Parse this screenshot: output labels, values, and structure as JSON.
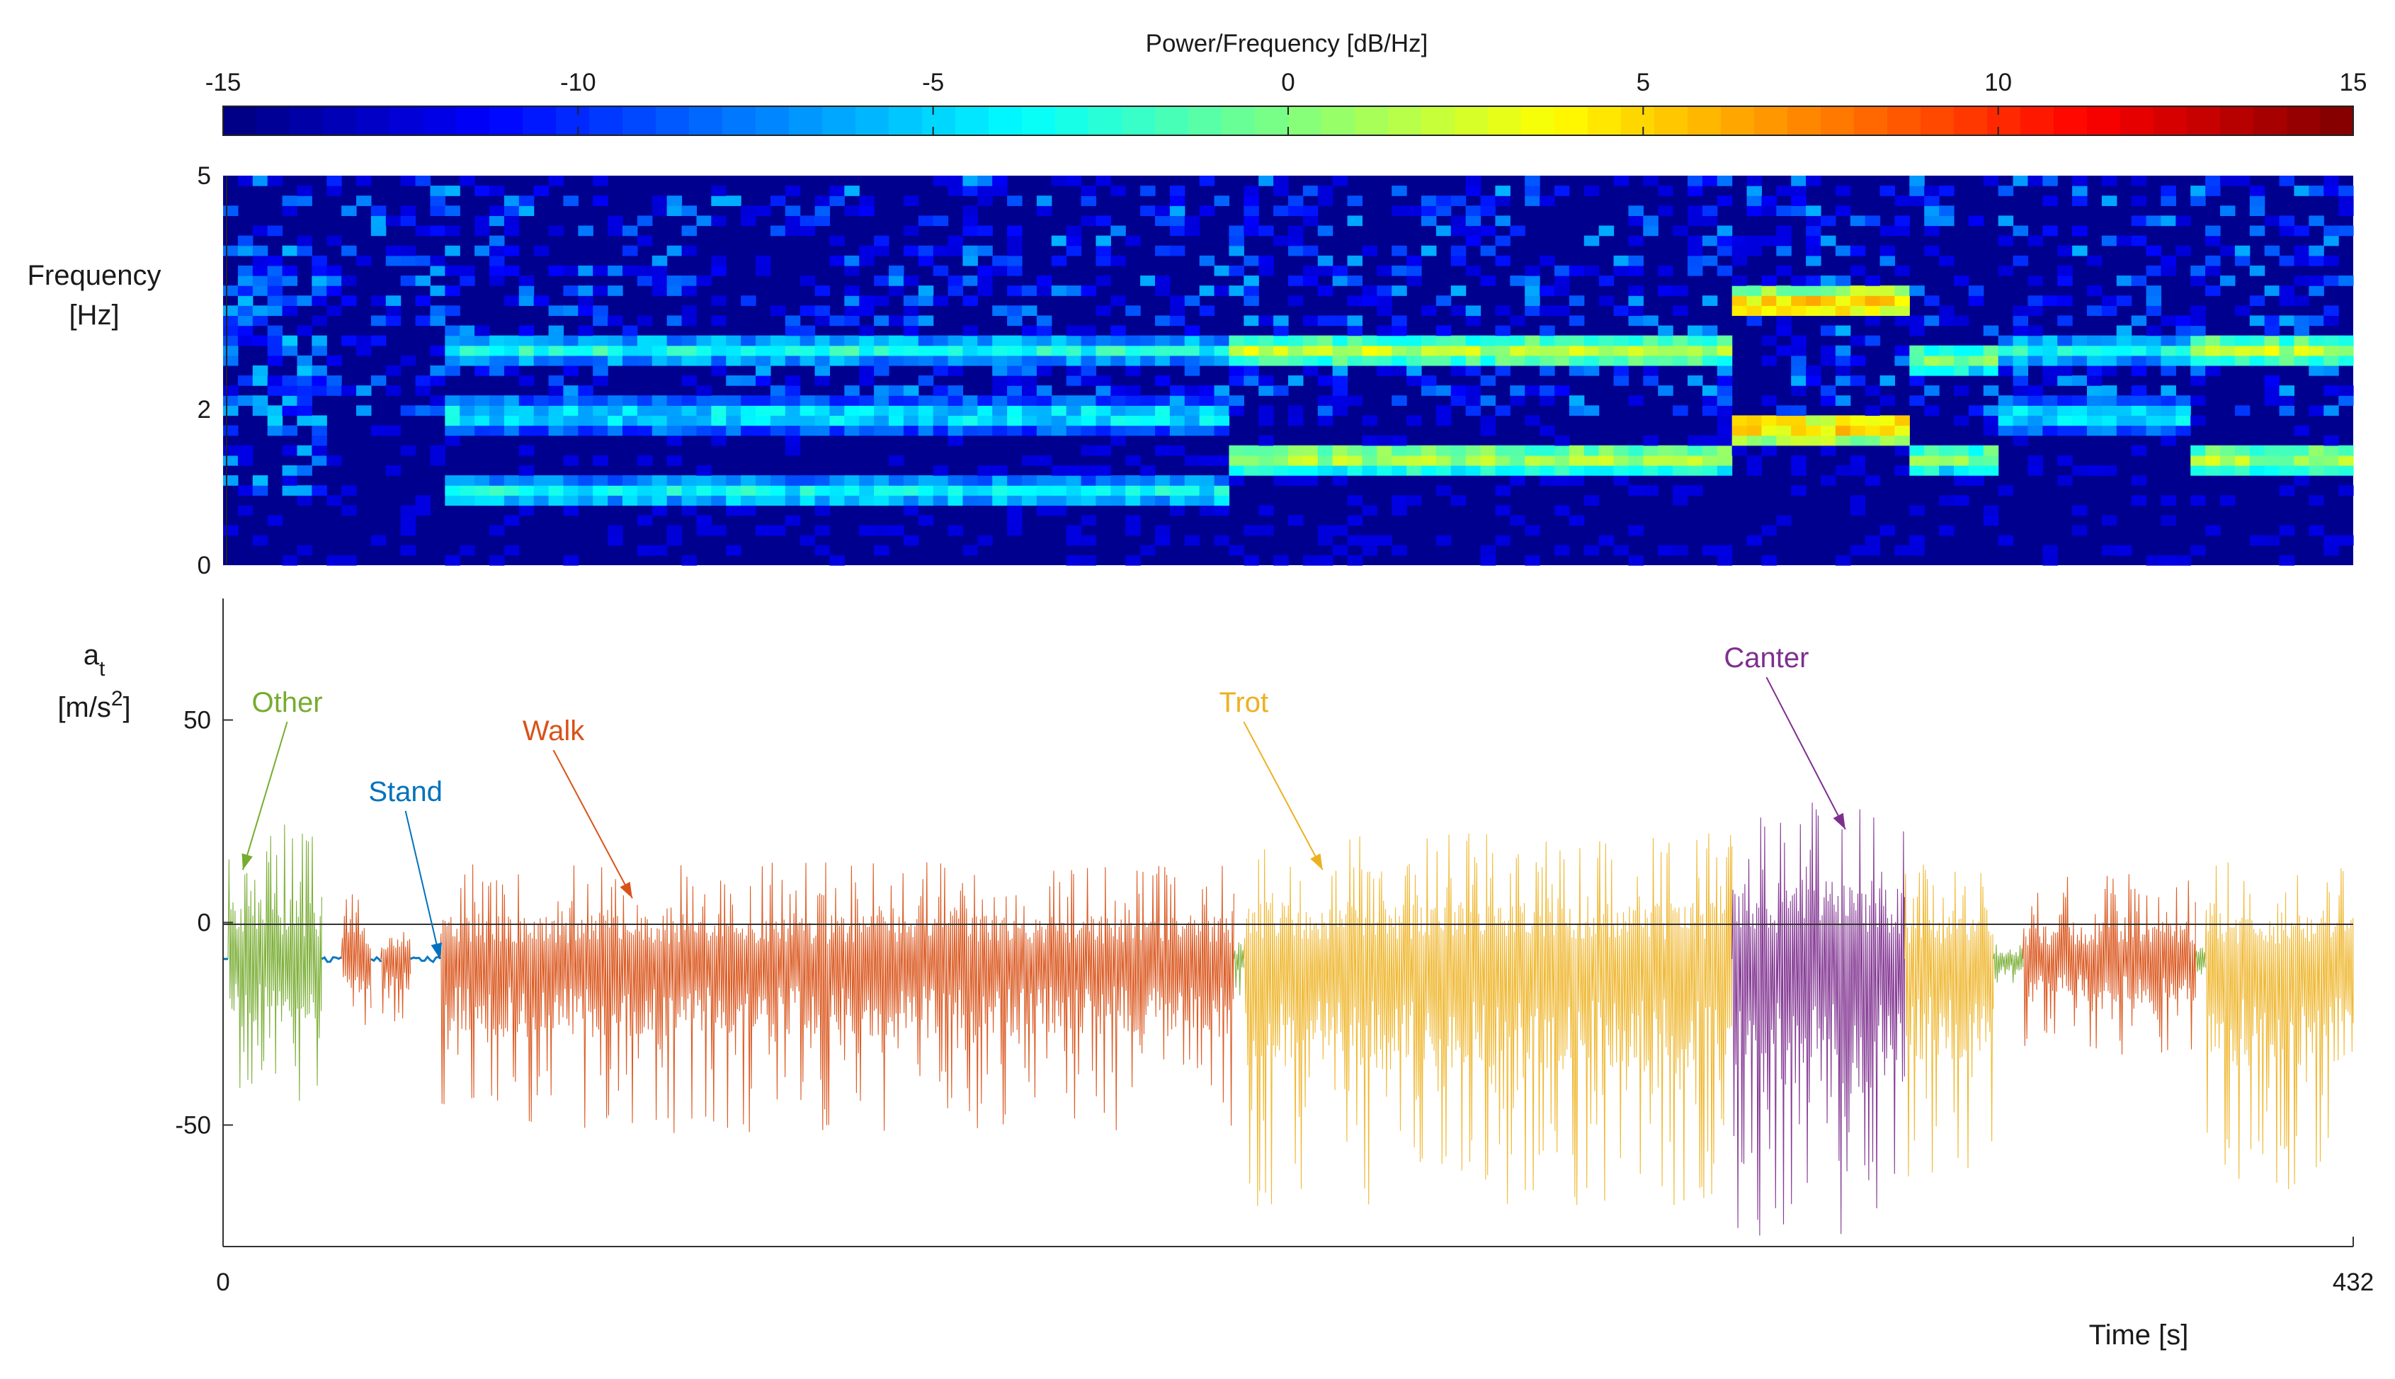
{
  "colorbar": {
    "title": "Power/Frequency [dB/Hz]",
    "range": [
      -15,
      15
    ],
    "ticks": [
      "-15",
      "-10",
      "-5",
      "0",
      "5",
      "10",
      "15"
    ],
    "tick_values": [
      -15,
      -10,
      -5,
      0,
      5,
      10,
      15
    ],
    "colormap": "jet"
  },
  "chart_data": [
    {
      "type": "heatmap",
      "ylabel_line1": "Frequency",
      "ylabel_line2": "[Hz]",
      "xlim": [
        0,
        432
      ],
      "ylim": [
        0,
        5
      ],
      "yticks": [
        "0",
        "2",
        "5"
      ],
      "ytick_values": [
        0,
        2,
        5
      ],
      "frequency_bands": [
        {
          "time_range": [
            0,
            20
          ],
          "pattern": "sparse",
          "peak_db": -5
        },
        {
          "time_range": [
            45,
            205
          ],
          "freqs_hz": [
            0.95,
            1.95,
            2.8
          ],
          "peak_db": -3
        },
        {
          "time_range": [
            205,
            306
          ],
          "freqs_hz": [
            1.4,
            2.8
          ],
          "peak_db": 2
        },
        {
          "time_range": [
            306,
            341
          ],
          "freqs_hz": [
            1.8,
            3.4
          ],
          "peak_db": 6
        },
        {
          "time_range": [
            341,
            360
          ],
          "freqs_hz": [
            1.4,
            2.7
          ],
          "peak_db": 1
        },
        {
          "time_range": [
            360,
            400
          ],
          "freqs_hz": [
            1.95,
            2.8
          ],
          "peak_db": -3
        },
        {
          "time_range": [
            400,
            432
          ],
          "freqs_hz": [
            1.4,
            2.8
          ],
          "peak_db": 2
        }
      ]
    },
    {
      "type": "line",
      "ylabel_main": "a",
      "ylabel_sub": "t",
      "ylabel_unit_pre": "[m/s",
      "ylabel_unit_sup": "2",
      "ylabel_unit_post": "]",
      "xlabel": "Time [s]",
      "xlim": [
        0,
        432
      ],
      "ylim": [
        -80,
        80
      ],
      "xticks": [
        "0",
        "432"
      ],
      "xtick_values": [
        0,
        432
      ],
      "yticks": [
        "-50",
        "0",
        "50"
      ],
      "ytick_values": [
        -50,
        0,
        50
      ],
      "baseline_y": 0,
      "rest_level": -9,
      "segments": [
        {
          "activity": "Other",
          "start": 1,
          "end": 20,
          "upper": 25,
          "lower": -45
        },
        {
          "activity": "Stand",
          "start": 20,
          "end": 24,
          "upper": -8,
          "lower": -10
        },
        {
          "activity": "Walk",
          "start": 24,
          "end": 30,
          "upper": 7,
          "lower": -29
        },
        {
          "activity": "Stand",
          "start": 30,
          "end": 32,
          "upper": -8,
          "lower": -10
        },
        {
          "activity": "Walk",
          "start": 32,
          "end": 38,
          "upper": 3,
          "lower": -27
        },
        {
          "activity": "Stand",
          "start": 38,
          "end": 44,
          "upper": -8,
          "lower": -10
        },
        {
          "activity": "Walk",
          "start": 44,
          "end": 205,
          "upper": 15,
          "lower": -52
        },
        {
          "activity": "Other",
          "start": 205,
          "end": 207,
          "upper": -3,
          "lower": -22
        },
        {
          "activity": "Trot",
          "start": 207,
          "end": 306,
          "upper": 22,
          "lower": -70
        },
        {
          "activity": "Canter",
          "start": 306,
          "end": 341,
          "upper": 30,
          "lower": -78
        },
        {
          "activity": "Trot",
          "start": 341,
          "end": 359,
          "upper": 15,
          "lower": -65
        },
        {
          "activity": "Other",
          "start": 359,
          "end": 365,
          "upper": -5,
          "lower": -18
        },
        {
          "activity": "Walk",
          "start": 365,
          "end": 400,
          "upper": 12,
          "lower": -33
        },
        {
          "activity": "Other",
          "start": 400,
          "end": 402,
          "upper": -3,
          "lower": -20
        },
        {
          "activity": "Trot",
          "start": 402,
          "end": 432,
          "upper": 15,
          "lower": -68
        }
      ],
      "annotations": [
        {
          "activity": "Other",
          "text": "Other",
          "text_pos": [
            13,
            52
          ],
          "arrow_to": [
            4,
            13
          ]
        },
        {
          "activity": "Stand",
          "text": "Stand",
          "text_pos": [
            37,
            30
          ],
          "arrow_to": [
            44,
            -9
          ]
        },
        {
          "activity": "Walk",
          "text": "Walk",
          "text_pos": [
            67,
            45
          ],
          "arrow_to": [
            83,
            6
          ]
        },
        {
          "activity": "Trot",
          "text": "Trot",
          "text_pos": [
            207,
            52
          ],
          "arrow_to": [
            223,
            13
          ]
        },
        {
          "activity": "Canter",
          "text": "Canter",
          "text_pos": [
            313,
            63
          ],
          "arrow_to": [
            329,
            23
          ]
        }
      ],
      "series_colors": {
        "Other": "#77ac30",
        "Stand": "#0072bd",
        "Walk": "#d95319",
        "Trot": "#edb120",
        "Canter": "#7e2f8e"
      }
    }
  ]
}
